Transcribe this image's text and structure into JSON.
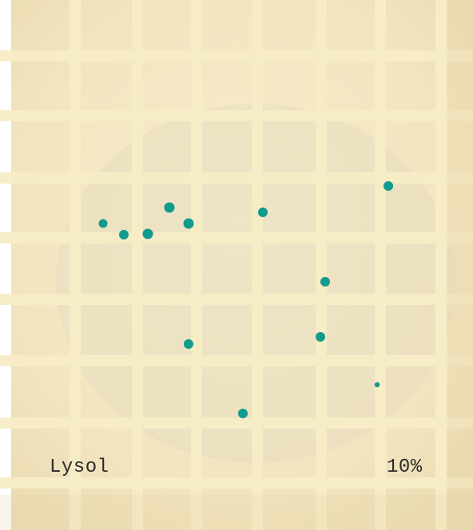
{
  "labels": {
    "left": "Lysol",
    "right": "10%"
  },
  "colors": {
    "background": "#f3e7c3",
    "grid": "#f7ecc4",
    "circle": "#e7dcbc",
    "colony": "#119a8e"
  },
  "colonies": {
    "count": 13
  }
}
